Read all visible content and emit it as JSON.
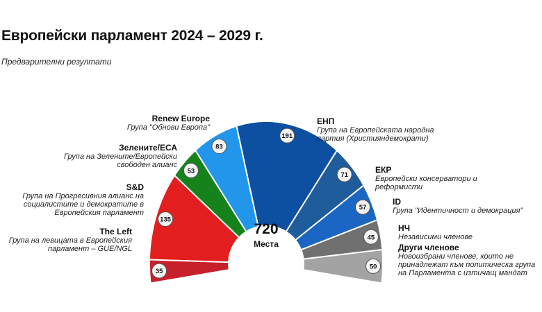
{
  "title": "Европейски парламент 2024 – 2029 г.",
  "subtitle": "Предварителни резултати",
  "total": {
    "value": "720",
    "label": "Места"
  },
  "chart_data": {
    "type": "pie",
    "variant": "parliament-semicircle",
    "total": 720,
    "groups": [
      {
        "key": "others",
        "name": "Други членове",
        "desc": "Новоизбрани членове, които не принадлежат към политическа група на Парламента с изтичащ мандат",
        "value": 50,
        "color": "#a3a3a3"
      },
      {
        "key": "ni",
        "name": "НЧ",
        "desc": "Независими членове",
        "value": 45,
        "color": "#707070"
      },
      {
        "key": "id",
        "name": "ID",
        "desc": "Група \"Идентичност и демокрация\"",
        "value": 57,
        "color": "#1b66c2"
      },
      {
        "key": "ecr",
        "name": "ЕКР",
        "desc": "Европейски консерватори и реформисти",
        "value": 71,
        "color": "#1f5c9c"
      },
      {
        "key": "epp",
        "name": "ЕНП",
        "desc": "Група на Европейската народна партия (Християндемократи)",
        "value": 191,
        "color": "#0d4fa0"
      },
      {
        "key": "renew",
        "name": "Renew Europe",
        "desc": "Група \"Обнови Европа\"",
        "value": 83,
        "color": "#2196ea"
      },
      {
        "key": "greens",
        "name": "Зелените/ЕСА",
        "desc": "Група на Зелените/Европейски свободен алианс",
        "value": 53,
        "color": "#16821b"
      },
      {
        "key": "sd",
        "name": "S&D",
        "desc": "Група на Прогресивния алианс на социалистите и демократите в Европейския парламент",
        "value": 135,
        "color": "#e31e1e"
      },
      {
        "key": "left",
        "name": "The Left",
        "desc": "Група на левицата в Европейския парламент – GUE/NGL",
        "value": 35,
        "color": "#c8202a"
      }
    ]
  }
}
